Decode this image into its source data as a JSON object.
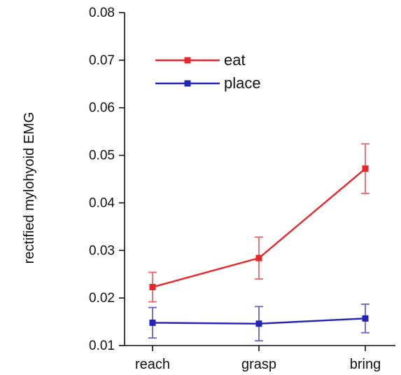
{
  "chart_data": {
    "type": "line",
    "title": "",
    "xlabel": "",
    "ylabel": "rectified mylohyoid EMG",
    "categories": [
      "reach",
      "grasp",
      "bring"
    ],
    "ylim": [
      0.01,
      0.08
    ],
    "yticks": [
      "0.01",
      "0.02",
      "0.03",
      "0.04",
      "0.05",
      "0.06",
      "0.07",
      "0.08"
    ],
    "legend_position": "top-left",
    "grid": false,
    "series": [
      {
        "name": "eat",
        "color": "#e8262b",
        "values": [
          0.0223,
          0.0284,
          0.0472
        ],
        "errors": [
          0.0031,
          0.0044,
          0.0052
        ]
      },
      {
        "name": "place",
        "color": "#2323b5",
        "values": [
          0.0148,
          0.0146,
          0.0157
        ],
        "errors": [
          0.0032,
          0.0036,
          0.003
        ]
      }
    ]
  }
}
